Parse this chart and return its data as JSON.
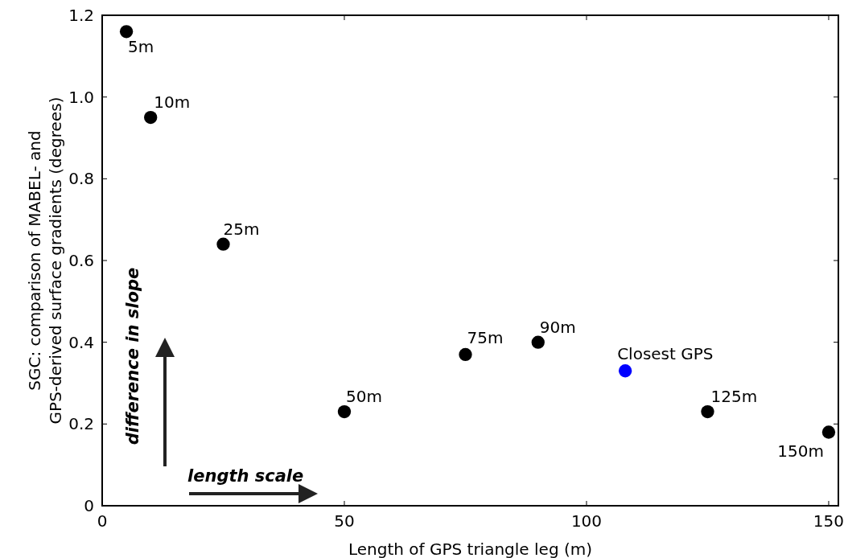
{
  "chart_data": {
    "type": "scatter",
    "xlabel": "Length of GPS triangle leg (m)",
    "ylabel": "SGC: comparison of MABEL- and\nGPS-derived surface gradients (degrees)",
    "xlim": [
      0,
      152
    ],
    "ylim": [
      0,
      1.2
    ],
    "xticks": [
      0,
      50,
      100,
      150
    ],
    "yticks": [
      0,
      0.2,
      0.4,
      0.6,
      0.8,
      {
        "value": 1,
        "label": "1.0"
      },
      1.2
    ],
    "grid": false,
    "marker": "circle",
    "series": [
      {
        "color": "#000000",
        "x": [
          5,
          10,
          25,
          50,
          75,
          90,
          125,
          150
        ],
        "values": [
          1.16,
          0.95,
          0.64,
          0.23,
          0.37,
          0.4,
          0.23,
          0.18
        ]
      },
      {
        "name": "Closest GPS",
        "color": "#0000ff",
        "x": [
          108
        ],
        "values": [
          0.33
        ]
      }
    ],
    "annotations": [
      {
        "text": "5m",
        "x": 5,
        "y": 1.16
      },
      {
        "text": "10m",
        "x": 10,
        "y": 0.95
      },
      {
        "text": "25m",
        "x": 25,
        "y": 0.64
      },
      {
        "text": "50m",
        "x": 50,
        "y": 0.23
      },
      {
        "text": "75m",
        "x": 75,
        "y": 0.37
      },
      {
        "text": "90m",
        "x": 90,
        "y": 0.4
      },
      {
        "text": "125m",
        "x": 125,
        "y": 0.23
      },
      {
        "text": "150m",
        "x": 150,
        "y": 0.18
      },
      "difference in slope",
      "length scale"
    ]
  }
}
